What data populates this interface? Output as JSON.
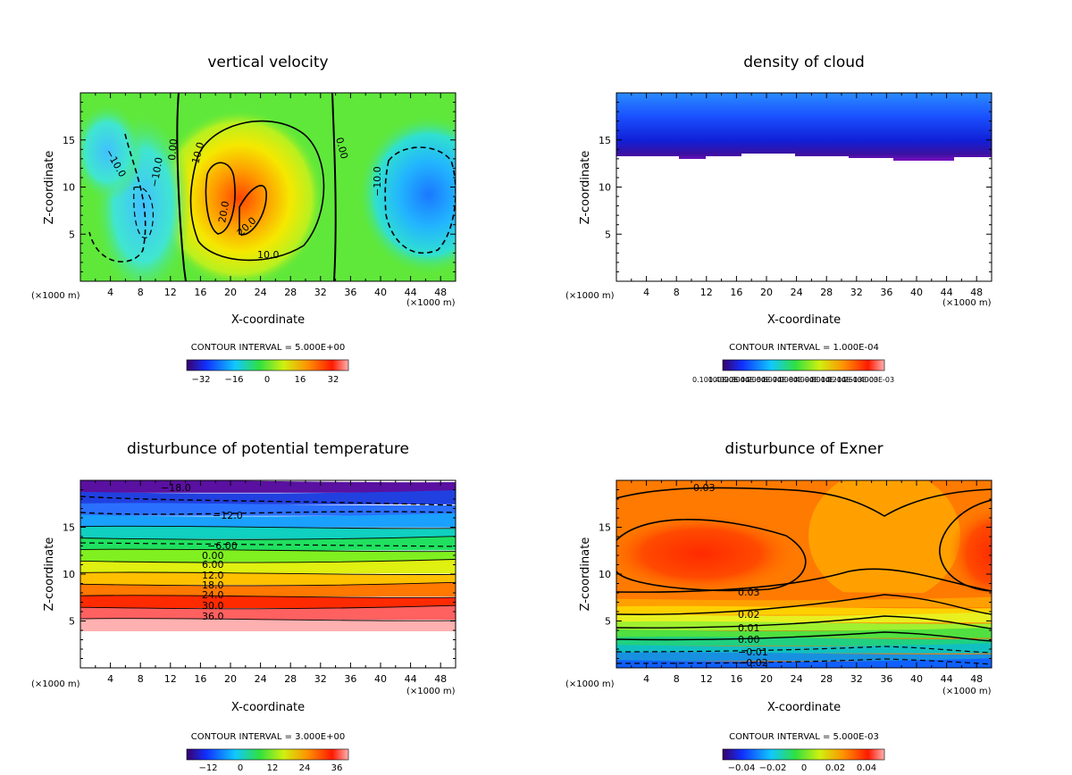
{
  "chart_data": [
    {
      "type": "heatmap",
      "title": "vertical velocity",
      "xlabel": "X-coordinate",
      "ylabel": "Z-coordinate",
      "x_unit_left": "(×1000 m)",
      "x_unit_right": "(×1000 m)",
      "x_ticks": [
        "4",
        "8",
        "12",
        "16",
        "20",
        "24",
        "28",
        "32",
        "36",
        "40",
        "44",
        "48"
      ],
      "y_ticks": [
        "5",
        "10",
        "15"
      ],
      "xlim": [
        0,
        50
      ],
      "ylim": [
        0,
        20
      ],
      "contour_interval": "CONTOUR INTERVAL = 5.000E+00",
      "colorbar_ticks": [
        "−32",
        "−16",
        "0",
        "16",
        "32"
      ],
      "contour_labels": [
        "−10.0",
        "0.00",
        "10.0",
        "−10.0",
        "20.0",
        "20.0",
        "10.0",
        "0.00",
        "−10.0"
      ],
      "background": "#5fe83a",
      "features": [
        {
          "kind": "updraft",
          "x": 22,
          "z": 9,
          "rx": 6,
          "rz": 6.5,
          "color": "#ff5a00"
        },
        {
          "kind": "downdraft",
          "x": 47,
          "z": 9,
          "rx": 4,
          "rz": 4,
          "color": "#1e8cff"
        },
        {
          "kind": "downdraft",
          "x": 8,
          "z": 8,
          "rx": 3,
          "rz": 6,
          "color": "#33c8ff"
        }
      ]
    },
    {
      "type": "heatmap",
      "title": "density of cloud",
      "xlabel": "X-coordinate",
      "ylabel": "Z-coordinate",
      "x_unit_left": "(×1000 m)",
      "x_unit_right": "(×1000 m)",
      "x_ticks": [
        "4",
        "8",
        "12",
        "16",
        "20",
        "24",
        "28",
        "32",
        "36",
        "40",
        "44",
        "48"
      ],
      "y_ticks": [
        "5",
        "10",
        "15"
      ],
      "xlim": [
        0,
        50
      ],
      "ylim": [
        0,
        20
      ],
      "contour_interval": "CONTOUR INTERVAL = 1.000E-04",
      "colorbar_ticks": [
        "0.10000E-05",
        "1.4000E-04",
        "2.8000E-04",
        "4.2000E-04",
        "5.6000E-04",
        "7.0000E-04",
        "8.4000E-04",
        "9.8000E-04",
        "1.1200E-03",
        "1.2600E-03",
        "1.4000E-03"
      ],
      "cloud_base_z": 13,
      "cloud_top_z": 20
    },
    {
      "type": "heatmap",
      "title": "disturbunce of potential temperature",
      "xlabel": "X-coordinate",
      "ylabel": "Z-coordinate",
      "x_unit_left": "(×1000 m)",
      "x_unit_right": "(×1000 m)",
      "x_ticks": [
        "4",
        "8",
        "12",
        "16",
        "20",
        "24",
        "28",
        "32",
        "36",
        "40",
        "44",
        "48"
      ],
      "y_ticks": [
        "5",
        "10",
        "15"
      ],
      "xlim": [
        0,
        50
      ],
      "ylim": [
        0,
        20
      ],
      "contour_interval": "CONTOUR INTERVAL = 3.000E+00",
      "colorbar_ticks": [
        "−12",
        "0",
        "12",
        "24",
        "36"
      ],
      "contour_labels": [
        "−18.0",
        "−12.0",
        "−6.00",
        "0.00",
        "6.00",
        "12.0",
        "18.0",
        "24.0",
        "30.0",
        "36.0"
      ],
      "band_colors": [
        "#5a10a0",
        "#2040e0",
        "#2a70ff",
        "#1aa0ff",
        "#10d0c0",
        "#20e060",
        "#80f020",
        "#e0f010",
        "#ffc000",
        "#ff7800",
        "#ff2a00",
        "#ff6060",
        "#ffb0b0"
      ]
    },
    {
      "type": "heatmap",
      "title": "disturbunce of Exner",
      "xlabel": "X-coordinate",
      "ylabel": "Z-coordinate",
      "x_unit_left": "(×1000 m)",
      "x_unit_right": "(×1000 m)",
      "x_ticks": [
        "4",
        "8",
        "12",
        "16",
        "20",
        "24",
        "28",
        "32",
        "36",
        "40",
        "44",
        "48"
      ],
      "y_ticks": [
        "5",
        "10",
        "15"
      ],
      "xlim": [
        0,
        50
      ],
      "ylim": [
        0,
        20
      ],
      "contour_interval": "CONTOUR INTERVAL = 5.000E-03",
      "colorbar_ticks": [
        "−0.04",
        "−0.02",
        "0",
        "0.02",
        "0.04"
      ],
      "contour_labels": [
        "0.03",
        "0.03",
        "0.02",
        "0.01",
        "0.00",
        "−0.01",
        "−0.02"
      ],
      "band_colors": [
        "#ff7a00",
        "#ffa000",
        "#ffd000",
        "#e8f020",
        "#a0f030",
        "#50e040",
        "#20d080",
        "#10c0c0",
        "#1890e0",
        "#1060ff"
      ]
    }
  ]
}
